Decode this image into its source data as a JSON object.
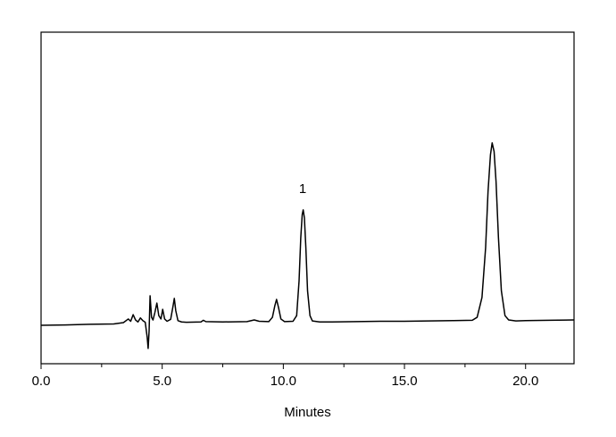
{
  "chart_data": {
    "type": "line",
    "x_label": "Minutes",
    "xlim": [
      0,
      22
    ],
    "ylim": [
      0,
      100
    ],
    "xticks": [
      {
        "value": 0,
        "label": "0.0"
      },
      {
        "value": 5,
        "label": "5.0"
      },
      {
        "value": 10,
        "label": "10.0"
      },
      {
        "value": 15,
        "label": "15.0"
      },
      {
        "value": 20,
        "label": "20.0"
      }
    ],
    "xminorticks": [
      2.5,
      7.5,
      12.5,
      17.5
    ],
    "color": "#000000",
    "annotations": [
      {
        "text": "1",
        "x": 10.8,
        "y": 52.6
      }
    ],
    "x": [
      0,
      1,
      2,
      3,
      3.4,
      3.6,
      3.7,
      3.8,
      3.9,
      4.0,
      4.1,
      4.2,
      4.3,
      4.38,
      4.42,
      4.46,
      4.5,
      4.56,
      4.62,
      4.7,
      4.78,
      4.86,
      4.95,
      5.02,
      5.1,
      5.2,
      5.35,
      5.45,
      5.5,
      5.56,
      5.65,
      5.8,
      6.0,
      6.6,
      6.7,
      6.8,
      7.5,
      8.5,
      8.8,
      9.0,
      9.4,
      9.55,
      9.65,
      9.72,
      9.8,
      9.9,
      10.05,
      10.4,
      10.55,
      10.65,
      10.72,
      10.78,
      10.82,
      10.87,
      10.93,
      11.0,
      11.1,
      11.2,
      11.5,
      12,
      13,
      14,
      15,
      16,
      17,
      17.8,
      18.0,
      18.2,
      18.35,
      18.45,
      18.55,
      18.62,
      18.7,
      18.78,
      18.88,
      19.0,
      19.15,
      19.3,
      19.6,
      20,
      21,
      22
    ],
    "values": [
      11.6,
      11.7,
      11.9,
      12.0,
      12.4,
      13.5,
      12.8,
      14.8,
      13.2,
      12.6,
      13.8,
      13.0,
      12.5,
      8,
      4.6,
      10,
      20.5,
      14,
      13.2,
      15.5,
      18.3,
      14.5,
      13.5,
      16.4,
      13.5,
      12.8,
      13.4,
      17.5,
      19.7,
      16,
      13,
      12.6,
      12.5,
      12.6,
      13.1,
      12.7,
      12.6,
      12.7,
      13.2,
      12.8,
      12.7,
      14,
      17.5,
      19.4,
      17,
      13.5,
      12.7,
      12.8,
      14.5,
      25,
      38,
      45,
      46.4,
      44,
      35,
      22,
      14.5,
      12.9,
      12.6,
      12.6,
      12.7,
      12.8,
      12.8,
      12.9,
      13.0,
      13.1,
      14,
      20,
      35,
      52,
      63,
      66.6,
      64,
      55,
      38,
      22,
      14.5,
      13.2,
      12.9,
      13.0,
      13.1,
      13.2
    ]
  }
}
